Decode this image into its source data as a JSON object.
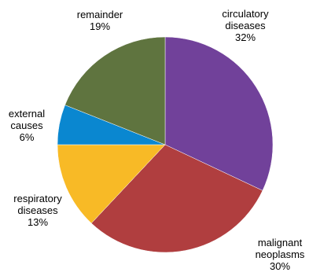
{
  "chart_data": {
    "type": "pie",
    "start_angle_deg": 0,
    "direction": "clockwise",
    "slices": [
      {
        "label": [
          "circulatory",
          "diseases"
        ],
        "value": 32,
        "pct_text": "32%",
        "color": "#71419A"
      },
      {
        "label": [
          "malignant",
          "neoplasms"
        ],
        "value": 30,
        "pct_text": "30%",
        "color": "#B03E3F"
      },
      {
        "label": [
          "respiratory",
          "diseases"
        ],
        "value": 13,
        "pct_text": "13%",
        "color": "#F8BA26"
      },
      {
        "label": [
          "external",
          "causes"
        ],
        "value": 6,
        "pct_text": "6%",
        "color": "#0A87D0"
      },
      {
        "label": [
          "remainder"
        ],
        "value": 19,
        "pct_text": "19%",
        "color": "#5F743F"
      }
    ],
    "legend": "none"
  }
}
